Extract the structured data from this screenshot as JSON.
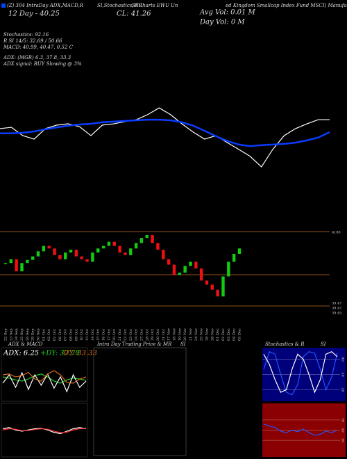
{
  "header": {
    "line1": [
      "(Z) 304 IntraDay ADX,MACD,R",
      "SI,Stochastics,MR",
      "SI Charts EWU",
      "Un",
      "ed Kingdom Smallcap Index Fund MSCI) Manufac"
    ],
    "day_avg": "12 Day - 40.25",
    "close": "CL: 41.26",
    "avg_vol": "Avg Vol: 0.01 M",
    "day_vol": "Day Vol: 0  M",
    "stats": [
      "Stochastics: 92.16",
      "R          SI 14/5: 32.69 / 50.66",
      "MACD: 40.99, 40.47, 0.52  C",
      "ADX:              (MGR) 6.3, 37.8, 33.3",
      "ADX  signal:              BUY Slowing @ 3%"
    ],
    "price_labels": [
      "4180",
      "39.47",
      "39.47",
      "39.45"
    ]
  },
  "panels": {
    "adx_title": "ADX  & MACD",
    "adx_values": [
      "ADX: 6.25",
      "+DY: 37.78",
      "-DY: 33.33"
    ],
    "intraday_title": [
      "Intra  Day Trading Price  & MR",
      "SI"
    ],
    "stoch_title": [
      "Stochastics & R",
      "SI"
    ]
  },
  "chart_data": [
    {
      "type": "line",
      "ylim": [
        39.5,
        41.9
      ],
      "series": [
        {
          "color": "#ffffff",
          "values": [
            40.92,
            40.96,
            40.7,
            40.59,
            40.92,
            41.03,
            41.07,
            40.98,
            40.7,
            41.03,
            41.07,
            41.14,
            41.2,
            41.36,
            41.57,
            41.36,
            41.07,
            40.81,
            40.59,
            40.7,
            40.48,
            40.27,
            40.05,
            39.72,
            40.27,
            40.7,
            40.92,
            41.07,
            41.2,
            41.2
          ]
        },
        {
          "color": "#0a3cff",
          "values": [
            40.77,
            40.77,
            40.79,
            40.83,
            40.9,
            40.96,
            41.01,
            41.05,
            41.07,
            41.12,
            41.14,
            41.16,
            41.18,
            41.2,
            41.2,
            41.18,
            41.12,
            41.01,
            40.85,
            40.68,
            40.53,
            40.42,
            40.37,
            40.4,
            40.42,
            40.44,
            40.48,
            40.55,
            40.64,
            40.81
          ]
        }
      ]
    },
    {
      "type": "candle",
      "ylim": [
        39.4,
        41.85
      ],
      "categories": [
        "22 Sep",
        "23 Sep",
        "24 Sep",
        "25 Sep",
        "26 Sep",
        "29 Sep",
        "30 Sep",
        "01 Oct",
        "02 Oct",
        "03 Oct",
        "06 Oct",
        "07 Oct",
        "08 Oct",
        "09 Oct",
        "10 Oct",
        "13 Oct",
        "14 Oct",
        "15 Oct",
        "16 Oct",
        "17 Oct",
        "20 Oct",
        "21 Oct",
        "22 Oct",
        "23 Oct",
        "24 Oct",
        "27 Oct",
        "28 Oct",
        "29 Oct",
        "30 Oct",
        "31 Oct",
        "17 Nov",
        "18 Nov",
        "19 Nov",
        "20 Nov",
        "21 Nov",
        "24 Nov",
        "25 Nov",
        "26 Nov",
        "28 Nov",
        "01 Dec",
        "02 Dec",
        "03 Dec",
        "04 Dec",
        "05 Dec"
      ],
      "values": [
        40.86,
        40.98,
        40.6,
        40.86,
        40.96,
        41.07,
        41.23,
        41.4,
        41.32,
        41.11,
        40.98,
        41.19,
        41.28,
        41.07,
        40.98,
        40.9,
        41.19,
        41.32,
        41.4,
        41.53,
        41.4,
        41.19,
        41.11,
        41.32,
        41.49,
        41.65,
        41.74,
        41.49,
        41.28,
        40.98,
        40.81,
        40.48,
        40.56,
        40.77,
        40.9,
        40.69,
        40.31,
        40.18,
        40.02,
        39.81,
        40.44,
        40.9,
        41.15,
        41.32
      ]
    },
    {
      "type": "line",
      "ylim": [
        0,
        100
      ],
      "series": [
        {
          "color": "#22cc22",
          "values": [
            55,
            52,
            48,
            45,
            50,
            58,
            62,
            55,
            45,
            40,
            48,
            52,
            50,
            47
          ]
        },
        {
          "color": "#ffffff",
          "values": [
            40,
            60,
            30,
            65,
            25,
            60,
            35,
            62,
            28,
            55,
            20,
            60,
            30,
            45
          ]
        },
        {
          "color": "#d2691e",
          "values": [
            60,
            62,
            55,
            58,
            66,
            50,
            45,
            62,
            70,
            60,
            42,
            40,
            50,
            55
          ]
        }
      ]
    },
    {
      "type": "line",
      "ylim": [
        -1,
        1
      ],
      "series": [
        {
          "color": "#ffffff",
          "values": [
            0.1,
            0.15,
            0.05,
            0.0,
            0.05,
            0.1,
            0.12,
            0.05,
            -0.05,
            -0.1,
            0.0,
            0.1,
            0.15,
            0.1
          ]
        },
        {
          "color": "#ff3030",
          "values": [
            0.05,
            0.1,
            0.08,
            0.02,
            0.03,
            0.07,
            0.1,
            0.08,
            0.0,
            -0.06,
            -0.04,
            0.05,
            0.1,
            0.12
          ]
        }
      ]
    },
    {
      "type": "line",
      "ylim": [
        0,
        100
      ],
      "yticks": [
        20,
        50,
        80
      ],
      "series": [
        {
          "color": "#2255ff",
          "values": [
            60,
            95,
            90,
            50,
            15,
            10,
            30,
            85,
            95,
            92,
            60,
            20,
            45,
            92
          ]
        },
        {
          "color": "#ffffff",
          "values": [
            90,
            70,
            40,
            15,
            20,
            60,
            90,
            80,
            50,
            15,
            40,
            90,
            95,
            85
          ]
        }
      ]
    },
    {
      "type": "line",
      "ylim": [
        0,
        100
      ],
      "yticks": [
        30,
        50,
        70
      ],
      "series": [
        {
          "color": "#2255ff",
          "values": [
            62,
            58,
            55,
            48,
            45,
            50,
            47,
            52,
            45,
            40,
            42,
            48,
            45,
            50
          ]
        }
      ]
    }
  ]
}
